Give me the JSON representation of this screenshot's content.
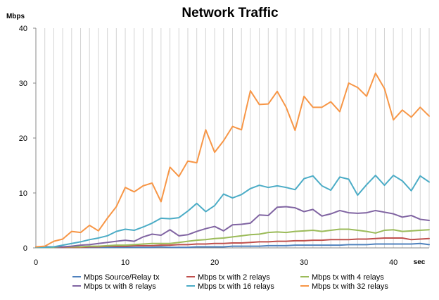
{
  "chart_data": {
    "type": "line",
    "title": "Network Traffic",
    "ylabel": "Mbps",
    "xlabel": "sec",
    "xlim": [
      0,
      44
    ],
    "ylim": [
      0,
      40
    ],
    "x_ticks": [
      0,
      10,
      20,
      30,
      40
    ],
    "x_tick_labels": [
      "0",
      "10",
      "20",
      "30",
      "40"
    ],
    "y_ticks": [
      0,
      10,
      20,
      30,
      40
    ],
    "y_tick_labels": [
      "0",
      "10",
      "20",
      "30",
      "40"
    ],
    "grid": "vertical",
    "legend_position": "bottom",
    "x": [
      0,
      1,
      2,
      3,
      4,
      5,
      6,
      7,
      8,
      9,
      10,
      11,
      12,
      13,
      14,
      15,
      16,
      17,
      18,
      19,
      20,
      21,
      22,
      23,
      24,
      25,
      26,
      27,
      28,
      29,
      30,
      31,
      32,
      33,
      34,
      35,
      36,
      37,
      38,
      39,
      40,
      41,
      42,
      43,
      44
    ],
    "series": [
      {
        "name": "Mbps Source/Relay tx",
        "color": "#4f81bd",
        "values": [
          0.1,
          0.1,
          0.1,
          0.1,
          0.1,
          0.1,
          0.1,
          0.1,
          0.1,
          0.1,
          0.1,
          0.1,
          0.1,
          0.1,
          0.2,
          0.1,
          0.1,
          0.1,
          0.2,
          0.2,
          0.2,
          0.2,
          0.3,
          0.3,
          0.3,
          0.3,
          0.4,
          0.4,
          0.4,
          0.5,
          0.5,
          0.5,
          0.5,
          0.5,
          0.5,
          0.6,
          0.6,
          0.6,
          0.7,
          0.7,
          0.7,
          0.7,
          0.7,
          0.8,
          0.6
        ]
      },
      {
        "name": "Mbps tx with 2 relays",
        "color": "#c0504d",
        "values": [
          0.1,
          0.1,
          0.1,
          0.1,
          0.1,
          0.1,
          0.2,
          0.2,
          0.3,
          0.3,
          0.3,
          0.4,
          0.4,
          0.4,
          0.5,
          0.5,
          0.6,
          0.6,
          0.7,
          0.7,
          0.8,
          0.8,
          0.9,
          0.9,
          1.0,
          1.1,
          1.1,
          1.2,
          1.2,
          1.3,
          1.3,
          1.4,
          1.4,
          1.5,
          1.5,
          1.5,
          1.6,
          1.6,
          1.7,
          1.8,
          1.8,
          1.8,
          1.5,
          1.6,
          1.7
        ]
      },
      {
        "name": "Mbps tx with 4 relays",
        "color": "#9bbb59",
        "values": [
          0.1,
          0.1,
          0.1,
          0.2,
          0.2,
          0.2,
          0.3,
          0.3,
          0.4,
          0.5,
          0.5,
          0.6,
          0.7,
          0.8,
          0.8,
          0.8,
          1.0,
          1.2,
          1.4,
          1.5,
          1.7,
          1.8,
          2.0,
          2.2,
          2.4,
          2.5,
          2.8,
          2.9,
          2.8,
          3.0,
          3.1,
          3.2,
          3.0,
          3.2,
          3.4,
          3.4,
          3.2,
          3.0,
          2.7,
          3.2,
          3.3,
          3.0,
          3.1,
          3.2,
          3.3
        ]
      },
      {
        "name": "Mbps tx with 8 relays",
        "color": "#8064a2",
        "values": [
          0.2,
          0.2,
          0.2,
          0.2,
          0.3,
          0.5,
          0.6,
          0.8,
          1.0,
          1.2,
          1.4,
          1.2,
          2.0,
          2.5,
          2.3,
          3.3,
          2.2,
          2.4,
          3.0,
          3.5,
          3.9,
          3.1,
          4.2,
          4.3,
          4.5,
          6.0,
          5.9,
          7.4,
          7.5,
          7.3,
          6.6,
          7.0,
          5.8,
          6.2,
          6.8,
          6.4,
          6.3,
          6.4,
          6.8,
          6.5,
          6.2,
          5.6,
          5.9,
          5.2,
          5.0
        ]
      },
      {
        "name": "Mbps tx with 16 relays",
        "color": "#4bacc6",
        "values": [
          0.1,
          0.1,
          0.2,
          0.5,
          0.8,
          1.1,
          1.5,
          1.8,
          2.2,
          3.0,
          3.4,
          3.2,
          3.8,
          4.5,
          5.4,
          5.3,
          5.5,
          6.7,
          8.1,
          6.6,
          7.7,
          9.8,
          9.1,
          9.7,
          10.8,
          11.4,
          11.0,
          11.3,
          11.0,
          10.6,
          12.6,
          13.1,
          11.3,
          10.5,
          12.9,
          12.5,
          9.6,
          11.5,
          13.2,
          11.4,
          13.2,
          12.2,
          10.4,
          13.1,
          12.0
        ]
      },
      {
        "name": "Mbps tx with 32 relays",
        "color": "#f79646",
        "values": [
          0.2,
          0.3,
          1.2,
          1.6,
          3.0,
          2.8,
          4.1,
          3.1,
          5.4,
          7.5,
          11.0,
          10.2,
          11.3,
          11.8,
          8.4,
          14.7,
          13.0,
          15.8,
          15.5,
          21.5,
          17.4,
          19.5,
          22.1,
          21.5,
          28.6,
          26.1,
          26.2,
          28.5,
          25.6,
          21.4,
          27.6,
          25.6,
          25.6,
          26.6,
          24.8,
          30.0,
          29.2,
          27.6,
          31.8,
          29.0,
          23.3,
          25.1,
          23.8,
          25.6,
          24.0
        ]
      }
    ]
  }
}
